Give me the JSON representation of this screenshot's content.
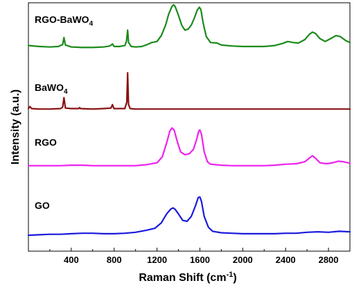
{
  "chart_data": {
    "type": "line",
    "xlabel": "Raman Shift (cm",
    "xlabel_sup": "-1",
    "xlabel_end": ")",
    "ylabel": "Intensity (a.u.)",
    "xlim": [
      0,
      3000
    ],
    "xticks": [
      400,
      800,
      1200,
      1600,
      2000,
      2400,
      2800
    ],
    "grid": false,
    "legend": "none",
    "y_units": "offset intensity (arbitrary units), traces stacked vertically",
    "series": [
      {
        "name": "RGO-BaWO4",
        "label_main": "RGO-BaWO",
        "label_sub": "4",
        "color": "#1a8a1a",
        "offset": 4.0,
        "points": [
          [
            0,
            0.14
          ],
          [
            100,
            0.12
          ],
          [
            200,
            0.11
          ],
          [
            280,
            0.12
          ],
          [
            320,
            0.16
          ],
          [
            332,
            0.3
          ],
          [
            345,
            0.15
          ],
          [
            400,
            0.11
          ],
          [
            500,
            0.1
          ],
          [
            600,
            0.1
          ],
          [
            700,
            0.11
          ],
          [
            760,
            0.13
          ],
          [
            785,
            0.17
          ],
          [
            800,
            0.12
          ],
          [
            850,
            0.12
          ],
          [
            900,
            0.14
          ],
          [
            915,
            0.22
          ],
          [
            926,
            0.45
          ],
          [
            935,
            0.2
          ],
          [
            960,
            0.12
          ],
          [
            1000,
            0.11
          ],
          [
            1060,
            0.12
          ],
          [
            1110,
            0.16
          ],
          [
            1150,
            0.2
          ],
          [
            1200,
            0.22
          ],
          [
            1240,
            0.34
          ],
          [
            1280,
            0.55
          ],
          [
            1310,
            0.78
          ],
          [
            1340,
            0.93
          ],
          [
            1355,
            0.96
          ],
          [
            1370,
            0.92
          ],
          [
            1400,
            0.75
          ],
          [
            1430,
            0.55
          ],
          [
            1460,
            0.45
          ],
          [
            1490,
            0.47
          ],
          [
            1520,
            0.55
          ],
          [
            1550,
            0.7
          ],
          [
            1575,
            0.85
          ],
          [
            1595,
            0.91
          ],
          [
            1610,
            0.86
          ],
          [
            1630,
            0.6
          ],
          [
            1660,
            0.32
          ],
          [
            1700,
            0.2
          ],
          [
            1760,
            0.19
          ],
          [
            1800,
            0.15
          ],
          [
            1900,
            0.13
          ],
          [
            2000,
            0.12
          ],
          [
            2100,
            0.12
          ],
          [
            2200,
            0.12
          ],
          [
            2300,
            0.14
          ],
          [
            2370,
            0.18
          ],
          [
            2420,
            0.22
          ],
          [
            2470,
            0.2
          ],
          [
            2520,
            0.19
          ],
          [
            2580,
            0.26
          ],
          [
            2620,
            0.36
          ],
          [
            2650,
            0.41
          ],
          [
            2680,
            0.38
          ],
          [
            2720,
            0.28
          ],
          [
            2770,
            0.22
          ],
          [
            2820,
            0.28
          ],
          [
            2870,
            0.34
          ],
          [
            2910,
            0.32
          ],
          [
            2960,
            0.24
          ],
          [
            3000,
            0.2
          ]
        ]
      },
      {
        "name": "BaWO4",
        "label_main": "BaWO",
        "label_sub": "4",
        "color": "#8a1010",
        "offset": 2.85,
        "points": [
          [
            0,
            0.02
          ],
          [
            15,
            0.06
          ],
          [
            30,
            0.02
          ],
          [
            100,
            0.01
          ],
          [
            200,
            0.01
          ],
          [
            300,
            0.02
          ],
          [
            320,
            0.05
          ],
          [
            332,
            0.24
          ],
          [
            345,
            0.03
          ],
          [
            400,
            0.02
          ],
          [
            470,
            0.02
          ],
          [
            478,
            0.04
          ],
          [
            486,
            0.02
          ],
          [
            600,
            0.01
          ],
          [
            700,
            0.02
          ],
          [
            770,
            0.03
          ],
          [
            784,
            0.1
          ],
          [
            798,
            0.02
          ],
          [
            850,
            0.02
          ],
          [
            900,
            0.02
          ],
          [
            918,
            0.15
          ],
          [
            926,
            0.74
          ],
          [
            934,
            0.1
          ],
          [
            950,
            0.02
          ],
          [
            1000,
            0.01
          ],
          [
            1200,
            0.01
          ],
          [
            1400,
            0.01
          ],
          [
            1600,
            0.01
          ],
          [
            1800,
            0.01
          ],
          [
            2000,
            0.01
          ],
          [
            2200,
            0.01
          ],
          [
            2400,
            0.01
          ],
          [
            2600,
            0.01
          ],
          [
            2800,
            0.01
          ],
          [
            3000,
            0.01
          ]
        ]
      },
      {
        "name": "RGO",
        "label_main": "RGO",
        "label_sub": "",
        "color": "#ee22ee",
        "offset": 1.7,
        "points": [
          [
            0,
            0.02
          ],
          [
            100,
            0.02
          ],
          [
            200,
            0.02
          ],
          [
            300,
            0.02
          ],
          [
            400,
            0.03
          ],
          [
            500,
            0.03
          ],
          [
            600,
            0.02
          ],
          [
            700,
            0.02
          ],
          [
            800,
            0.02
          ],
          [
            900,
            0.02
          ],
          [
            1000,
            0.02
          ],
          [
            1100,
            0.04
          ],
          [
            1200,
            0.08
          ],
          [
            1250,
            0.2
          ],
          [
            1290,
            0.48
          ],
          [
            1320,
            0.72
          ],
          [
            1340,
            0.78
          ],
          [
            1360,
            0.74
          ],
          [
            1390,
            0.5
          ],
          [
            1420,
            0.3
          ],
          [
            1460,
            0.24
          ],
          [
            1500,
            0.26
          ],
          [
            1540,
            0.35
          ],
          [
            1570,
            0.55
          ],
          [
            1590,
            0.72
          ],
          [
            1600,
            0.74
          ],
          [
            1615,
            0.65
          ],
          [
            1640,
            0.3
          ],
          [
            1670,
            0.1
          ],
          [
            1700,
            0.05
          ],
          [
            1800,
            0.03
          ],
          [
            1900,
            0.02
          ],
          [
            2000,
            0.02
          ],
          [
            2100,
            0.02
          ],
          [
            2200,
            0.02
          ],
          [
            2300,
            0.03
          ],
          [
            2400,
            0.05
          ],
          [
            2500,
            0.06
          ],
          [
            2580,
            0.1
          ],
          [
            2620,
            0.17
          ],
          [
            2650,
            0.22
          ],
          [
            2680,
            0.17
          ],
          [
            2720,
            0.08
          ],
          [
            2780,
            0.06
          ],
          [
            2840,
            0.08
          ],
          [
            2890,
            0.11
          ],
          [
            2940,
            0.1
          ],
          [
            3000,
            0.07
          ]
        ]
      },
      {
        "name": "GO",
        "label_main": "GO",
        "label_sub": "",
        "color": "#1a1add",
        "offset": 0.3,
        "points": [
          [
            0,
            0.02
          ],
          [
            100,
            0.03
          ],
          [
            200,
            0.04
          ],
          [
            300,
            0.04
          ],
          [
            400,
            0.05
          ],
          [
            500,
            0.06
          ],
          [
            600,
            0.06
          ],
          [
            700,
            0.05
          ],
          [
            800,
            0.05
          ],
          [
            900,
            0.06
          ],
          [
            1000,
            0.08
          ],
          [
            1100,
            0.12
          ],
          [
            1180,
            0.16
          ],
          [
            1240,
            0.27
          ],
          [
            1290,
            0.45
          ],
          [
            1330,
            0.55
          ],
          [
            1350,
            0.57
          ],
          [
            1370,
            0.54
          ],
          [
            1400,
            0.45
          ],
          [
            1440,
            0.32
          ],
          [
            1480,
            0.3
          ],
          [
            1520,
            0.4
          ],
          [
            1560,
            0.62
          ],
          [
            1585,
            0.78
          ],
          [
            1600,
            0.79
          ],
          [
            1615,
            0.7
          ],
          [
            1640,
            0.4
          ],
          [
            1680,
            0.18
          ],
          [
            1720,
            0.1
          ],
          [
            1800,
            0.07
          ],
          [
            1900,
            0.06
          ],
          [
            2000,
            0.05
          ],
          [
            2100,
            0.05
          ],
          [
            2200,
            0.05
          ],
          [
            2300,
            0.05
          ],
          [
            2400,
            0.06
          ],
          [
            2500,
            0.06
          ],
          [
            2600,
            0.08
          ],
          [
            2700,
            0.09
          ],
          [
            2800,
            0.08
          ],
          [
            2900,
            0.1
          ],
          [
            3000,
            0.09
          ]
        ]
      }
    ]
  }
}
